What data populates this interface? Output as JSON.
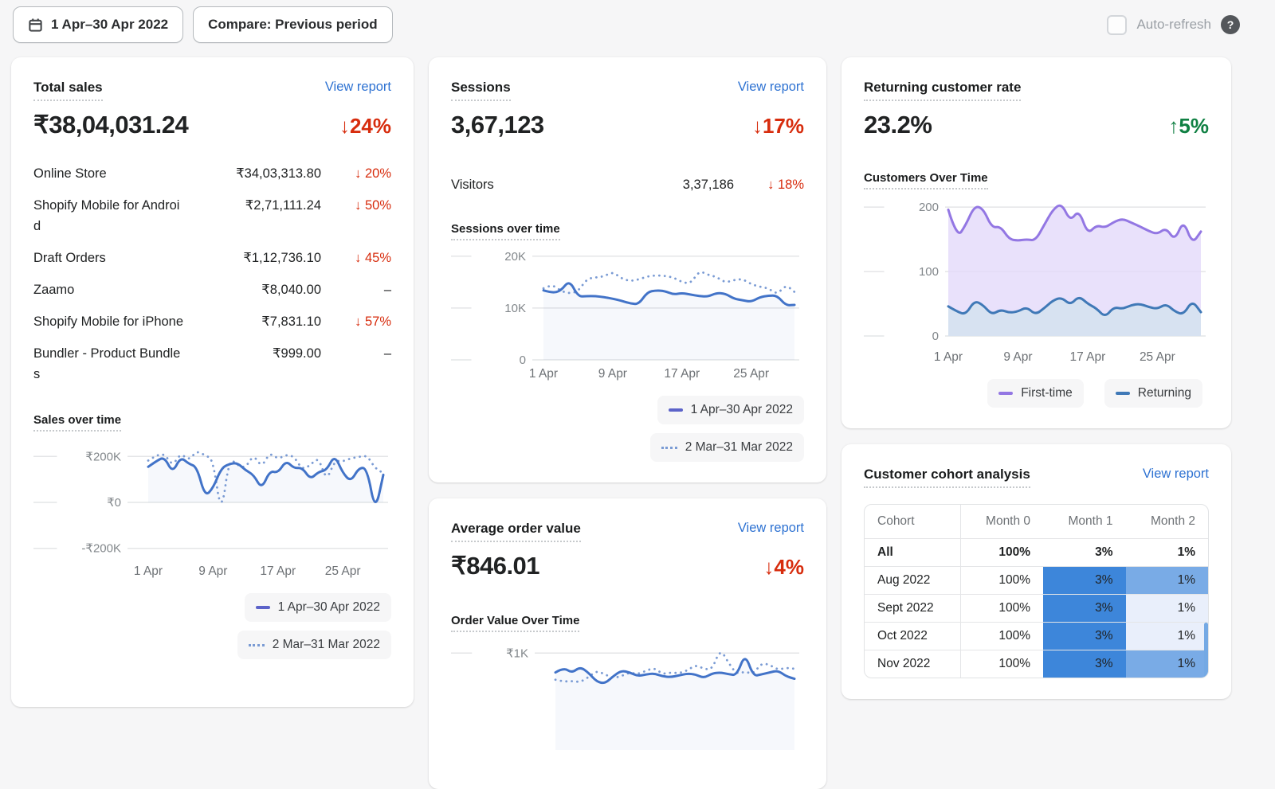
{
  "topbar": {
    "date_range_label": "1 Apr–30 Apr 2022",
    "compare_label": "Compare: Previous period",
    "auto_refresh_label": "Auto-refresh",
    "help_label": "?"
  },
  "colors": {
    "link": "#2e72d2",
    "negative": "#d72c0d",
    "positive": "#108043",
    "line_current": "#4273c8",
    "line_previous": "#7a9bd4",
    "legend_current_swatch": "#5c63c9",
    "first_time": "#9377e3",
    "returning": "#4079b7",
    "cohort_strong": "#3d86da",
    "cohort_medium": "#79abe6",
    "cohort_light": "#e9effb"
  },
  "cards": {
    "total_sales": {
      "title": "Total sales",
      "view_report": "View report",
      "value": "₹38,04,031.24",
      "delta": "↓24%",
      "delta_direction": "down",
      "breakdown": [
        {
          "label": "Online Store",
          "value": "₹34,03,313.80",
          "delta": "↓ 20%",
          "direction": "down"
        },
        {
          "label": "Shopify Mobile for Android",
          "value": "₹2,71,111.24",
          "delta": "↓ 50%",
          "direction": "down"
        },
        {
          "label": "Draft Orders",
          "value": "₹1,12,736.10",
          "delta": "↓ 45%",
          "direction": "down"
        },
        {
          "label": "Zaamo",
          "value": "₹8,040.00",
          "delta": "–",
          "direction": "none"
        },
        {
          "label": "Shopify Mobile for iPhone",
          "value": "₹7,831.10",
          "delta": "↓ 57%",
          "direction": "down"
        },
        {
          "label": "Bundler - Product Bundles",
          "value": "₹999.00",
          "delta": "–",
          "direction": "none"
        }
      ],
      "chart_title": "Sales over time",
      "legend": [
        {
          "label": "1 Apr–30 Apr 2022",
          "style": "solid"
        },
        {
          "label": "2 Mar–31 Mar 2022",
          "style": "dotted"
        }
      ]
    },
    "sessions": {
      "title": "Sessions",
      "view_report": "View report",
      "value": "3,67,123",
      "delta": "↓17%",
      "delta_direction": "down",
      "breakdown": [
        {
          "label": "Visitors",
          "value": "3,37,186",
          "delta": "↓ 18%",
          "direction": "down"
        }
      ],
      "chart_title": "Sessions over time",
      "legend": [
        {
          "label": "1 Apr–30 Apr 2022",
          "style": "solid"
        },
        {
          "label": "2 Mar–31 Mar 2022",
          "style": "dotted"
        }
      ]
    },
    "returning_rate": {
      "title": "Returning customer rate",
      "value": "23.2%",
      "delta": "↑5%",
      "delta_direction": "up",
      "chart_title": "Customers Over Time",
      "legend": [
        {
          "label": "First-time",
          "color": "#9377e3"
        },
        {
          "label": "Returning",
          "color": "#4079b7"
        }
      ]
    },
    "aov": {
      "title": "Average order value",
      "view_report": "View report",
      "value": "₹846.01",
      "delta": "↓4%",
      "delta_direction": "down",
      "chart_title": "Order Value Over Time"
    },
    "cohort": {
      "title": "Customer cohort analysis",
      "view_report": "View report",
      "columns": [
        "Cohort",
        "Month 0",
        "Month 1",
        "Month 2"
      ],
      "rows": [
        {
          "cohort": "All",
          "cells": [
            "100%",
            "3%",
            "1%"
          ],
          "bgs": [
            "",
            "",
            ""
          ],
          "bold": true
        },
        {
          "cohort": "Aug 2022",
          "cells": [
            "100%",
            "3%",
            "1%"
          ],
          "bgs": [
            "",
            "#3d86da",
            "#79abe6"
          ],
          "bold": false
        },
        {
          "cohort": "Sept 2022",
          "cells": [
            "100%",
            "3%",
            "1%"
          ],
          "bgs": [
            "",
            "#3d86da",
            "#e9effb"
          ],
          "bold": false
        },
        {
          "cohort": "Oct 2022",
          "cells": [
            "100%",
            "3%",
            "1%"
          ],
          "bgs": [
            "",
            "#3d86da",
            "#e9effb"
          ],
          "bold": false
        },
        {
          "cohort": "Nov 2022",
          "cells": [
            "100%",
            "3%",
            "1%"
          ],
          "bgs": [
            "",
            "#3d86da",
            "#79abe6"
          ],
          "bold": false
        }
      ]
    }
  },
  "chart_data": [
    {
      "id": "sales",
      "type": "line",
      "title": "Sales over time",
      "unit": "₹K (INR thousands)",
      "ylim": [
        -260,
        260
      ],
      "yticks": [
        {
          "v": 200,
          "label": "₹200K"
        },
        {
          "v": 0,
          "label": "₹0"
        },
        {
          "v": -200,
          "label": "-₹200K"
        }
      ],
      "xticks": [
        {
          "i": 0,
          "label": "1 Apr"
        },
        {
          "i": 8,
          "label": "9 Apr"
        },
        {
          "i": 16,
          "label": "17 Apr"
        },
        {
          "i": 24,
          "label": "25 Apr"
        }
      ],
      "series": [
        {
          "name": "1 Apr–30 Apr 2022",
          "color": "#4273c8",
          "dash": "solid",
          "fill": "rgba(70,115,200,0.05)",
          "values": [
            155,
            180,
            198,
            128,
            198,
            168,
            155,
            25,
            62,
            148,
            168,
            172,
            140,
            120,
            58,
            138,
            128,
            182,
            148,
            152,
            100,
            133,
            140,
            207,
            128,
            90,
            152,
            148,
            -42,
            120
          ]
        },
        {
          "name": "2 Mar–31 Mar 2022",
          "color": "#7a9bd4",
          "dash": "dotted",
          "fill": null,
          "values": [
            182,
            205,
            212,
            158,
            215,
            182,
            225,
            205,
            188,
            -62,
            195,
            162,
            150,
            208,
            152,
            218,
            188,
            208,
            200,
            142,
            162,
            198,
            92,
            182,
            178,
            192,
            198,
            205,
            148,
            128
          ]
        }
      ]
    },
    {
      "id": "sessions",
      "type": "line",
      "title": "Sessions over time",
      "unit": "K sessions",
      "ylim": [
        0,
        21.5
      ],
      "yticks": [
        {
          "v": 20,
          "label": "20K"
        },
        {
          "v": 10,
          "label": "10K"
        },
        {
          "v": 0,
          "label": "0"
        }
      ],
      "xticks": [
        {
          "i": 0,
          "label": "1 Apr"
        },
        {
          "i": 8,
          "label": "9 Apr"
        },
        {
          "i": 16,
          "label": "17 Apr"
        },
        {
          "i": 24,
          "label": "25 Apr"
        }
      ],
      "series": [
        {
          "name": "1 Apr–30 Apr 2022",
          "color": "#4273c8",
          "dash": "solid",
          "fill": "rgba(70,115,200,0.05)",
          "values": [
            13.4,
            12.9,
            13.3,
            15.4,
            12.2,
            12.3,
            12.3,
            12.1,
            11.8,
            11.4,
            10.9,
            10.7,
            13.1,
            13.4,
            13.3,
            12.6,
            12.9,
            12.6,
            12.3,
            12.2,
            12.9,
            12.8,
            11.8,
            11.5,
            11.2,
            12.1,
            12.4,
            12.4,
            10.5,
            10.6
          ]
        },
        {
          "name": "2 Mar–31 Mar 2022",
          "color": "#7a9bd4",
          "dash": "dotted",
          "fill": null,
          "values": [
            13.8,
            14.6,
            13.3,
            12.8,
            13.2,
            15.6,
            15.9,
            16.1,
            17.0,
            15.7,
            15.2,
            15.5,
            16.1,
            16.3,
            16.2,
            15.9,
            15.0,
            14.7,
            17.2,
            16.4,
            16.0,
            14.9,
            15.4,
            15.6,
            14.6,
            14.1,
            13.8,
            12.6,
            14.5,
            13.1
          ]
        }
      ]
    },
    {
      "id": "customers",
      "type": "area",
      "title": "Customers Over Time",
      "unit": "customers",
      "ylim": [
        0,
        215
      ],
      "yticks": [
        {
          "v": 200,
          "label": "200"
        },
        {
          "v": 100,
          "label": "100"
        },
        {
          "v": 0,
          "label": "0"
        }
      ],
      "xticks": [
        {
          "i": 0,
          "label": "1 Apr"
        },
        {
          "i": 8,
          "label": "9 Apr"
        },
        {
          "i": 16,
          "label": "17 Apr"
        },
        {
          "i": 24,
          "label": "25 Apr"
        }
      ],
      "series": [
        {
          "name": "First-time",
          "color": "#9377e3",
          "dash": "solid",
          "fill": "rgba(227,218,250,0.8)",
          "values": [
            196,
            152,
            172,
            202,
            198,
            168,
            170,
            150,
            148,
            150,
            148,
            172,
            196,
            206,
            178,
            196,
            158,
            172,
            168,
            177,
            182,
            176,
            170,
            163,
            158,
            168,
            148,
            180,
            143,
            162
          ]
        },
        {
          "name": "Returning",
          "color": "#4079b7",
          "dash": "solid",
          "fill": "rgba(214,226,240,0.95)",
          "values": [
            46,
            38,
            33,
            55,
            48,
            33,
            41,
            36,
            38,
            45,
            33,
            43,
            55,
            60,
            48,
            62,
            50,
            43,
            29,
            45,
            42,
            48,
            50,
            45,
            42,
            50,
            38,
            33,
            55,
            37
          ]
        }
      ]
    },
    {
      "id": "aov",
      "type": "line",
      "title": "Order Value Over Time",
      "unit": "₹ (INR)",
      "ylim": [
        0,
        1150
      ],
      "yticks": [
        {
          "v": 1000,
          "label": "₹1K"
        }
      ],
      "xticks": [],
      "series": [
        {
          "name": "1 Apr–30 Apr 2022",
          "color": "#4273c8",
          "dash": "solid",
          "fill": "rgba(70,115,200,0.05)",
          "values": [
            800,
            850,
            795,
            858,
            798,
            705,
            685,
            760,
            820,
            800,
            762,
            780,
            790,
            760,
            752,
            770,
            788,
            780,
            742,
            790,
            800,
            782,
            770,
            995,
            762,
            780,
            800,
            820,
            760,
            735
          ]
        },
        {
          "name": "2 Mar–31 Mar 2022",
          "color": "#7a9bd4",
          "dash": "dotted",
          "fill": null,
          "values": [
            725,
            705,
            712,
            700,
            750,
            818,
            780,
            742,
            762,
            800,
            782,
            818,
            848,
            782,
            800,
            792,
            820,
            878,
            838,
            828,
            1045,
            898,
            782,
            810,
            782,
            898,
            878,
            828,
            848,
            838
          ]
        }
      ]
    }
  ]
}
